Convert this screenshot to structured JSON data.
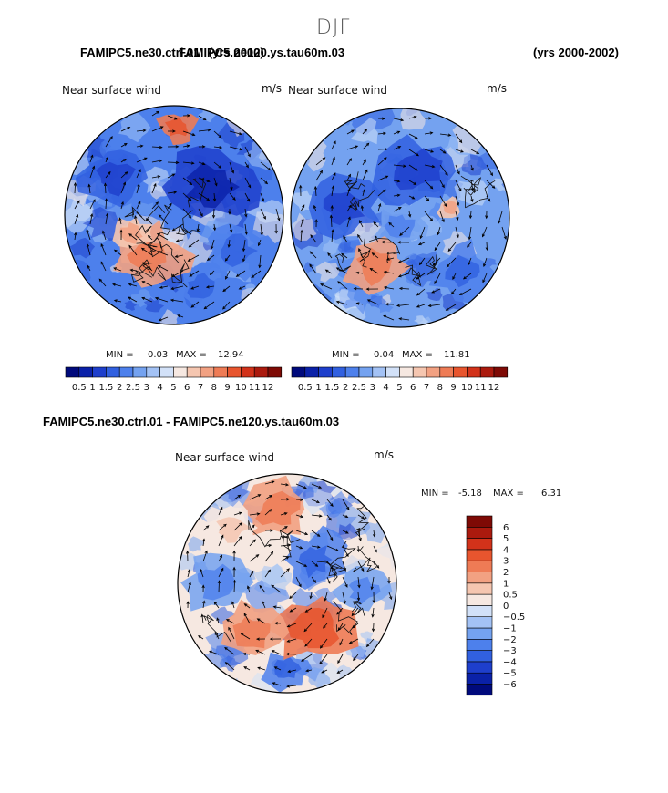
{
  "header": {
    "season": "DJF",
    "title_overlap_a": "FAMIPC5.ne30.ctrl.01",
    "title_overlap_b": "FAMIPC5.ne120.ys.tau60m.03",
    "title_overlap_c": "(yrs 2000)",
    "years": "(yrs 2000-2002)"
  },
  "diff_title": "FAMIPC5.ne30.ctrl.01 - FAMIPC5.ne120.ys.tau60m.03",
  "chart_data": [
    {
      "type": "heatmap",
      "subtype": "polar-stereographic wind speed with vectors",
      "case": "FAMIPC5.ne30.ctrl.01",
      "title": "Near surface wind",
      "units": "m/s",
      "min_label": "MIN =",
      "max_label": "MAX =",
      "min": 0.03,
      "max": 12.94,
      "colorbar_levels": [
        0.5,
        1,
        1.5,
        2,
        2.5,
        3,
        4,
        5,
        6,
        7,
        8,
        9,
        10,
        11,
        12
      ],
      "colorbar_labels": [
        "0.5",
        "1",
        "1.5",
        "2",
        "2.5",
        "3",
        "4",
        "5",
        "6",
        "7",
        "8",
        "9",
        "10",
        "11",
        "12"
      ],
      "colorbar_colors": [
        "#000a7c",
        "#0a21a8",
        "#1e3fcc",
        "#3160e0",
        "#4d80ec",
        "#74a2f0",
        "#a3c2f5",
        "#d2e1f8",
        "#f6e8e1",
        "#f5c6b0",
        "#f2a182",
        "#ee7b55",
        "#e8552e",
        "#d2321a",
        "#ab1a0e",
        "#7e0a05"
      ]
    },
    {
      "type": "heatmap",
      "subtype": "polar-stereographic wind speed with vectors",
      "case": "FAMIPC5.ne120.ys.tau60m.03",
      "title": "Near surface wind",
      "units": "m/s",
      "min_label": "MIN =",
      "max_label": "MAX =",
      "min": 0.04,
      "max": 11.81,
      "colorbar_levels": [
        0.5,
        1,
        1.5,
        2,
        2.5,
        3,
        4,
        5,
        6,
        7,
        8,
        9,
        10,
        11,
        12
      ],
      "colorbar_labels": [
        "0.5",
        "1",
        "1.5",
        "2",
        "2.5",
        "3",
        "4",
        "5",
        "6",
        "7",
        "8",
        "9",
        "10",
        "11",
        "12"
      ],
      "colorbar_colors": [
        "#000a7c",
        "#0a21a8",
        "#1e3fcc",
        "#3160e0",
        "#4d80ec",
        "#74a2f0",
        "#a3c2f5",
        "#d2e1f8",
        "#f6e8e1",
        "#f5c6b0",
        "#f2a182",
        "#ee7b55",
        "#e8552e",
        "#d2321a",
        "#ab1a0e",
        "#7e0a05"
      ]
    },
    {
      "type": "heatmap",
      "subtype": "polar-stereographic wind speed difference with vectors",
      "case": "FAMIPC5.ne30.ctrl.01 - FAMIPC5.ne120.ys.tau60m.03",
      "title": "Near surface wind",
      "units": "m/s",
      "min_label": "MIN =",
      "max_label": "MAX =",
      "min": -5.18,
      "max": 6.31,
      "colorbar_levels": [
        -6,
        -5,
        -4,
        -3,
        -2,
        -1,
        -0.5,
        0,
        0.5,
        1,
        2,
        3,
        4,
        5,
        6
      ],
      "colorbar_labels": [
        "−6",
        "−5",
        "−4",
        "−3",
        "−2",
        "−1",
        "−0.5",
        "0",
        "0.5",
        "1",
        "2",
        "3",
        "4",
        "5",
        "6"
      ],
      "colorbar_colors": [
        "#000a7c",
        "#0a21a8",
        "#1e3fcc",
        "#3160e0",
        "#4d80ec",
        "#74a2f0",
        "#a3c2f5",
        "#d2e1f8",
        "#f6e8e1",
        "#f5c6b0",
        "#f2a182",
        "#ee7b55",
        "#e8552e",
        "#d2321a",
        "#ab1a0e",
        "#7e0a05"
      ]
    }
  ]
}
